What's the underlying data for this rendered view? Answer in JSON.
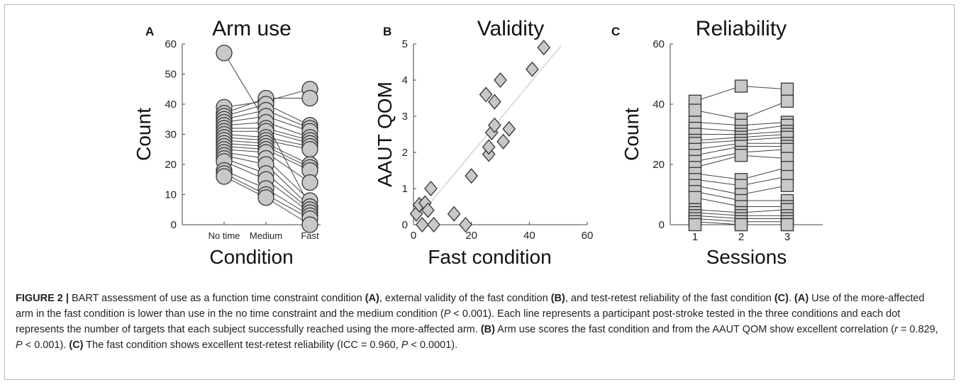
{
  "figure_label": "FIGURE 2 |",
  "caption": {
    "s1": " BART assessment of use as a function time constraint condition ",
    "s2": ", external validity of the fast condition ",
    "s3": ", and test-retest reliability of the fast condition ",
    "s4": ". ",
    "s5": " Use of the more-affected arm in the fast condition is lower than use in the no time constraint and the medium condition (",
    "s6": " < 0.001). Each line represents a participant post-stroke tested in the three conditions and each dot represents the number of targets that each subject successfully reached using the more-affected arm. ",
    "s7": " Arm use scores the fast condition and from the AAUT QOM show excellent correlation (",
    "s8": " = 0.829, ",
    "s9": " < 0.001). ",
    "s10": " The fast condition shows excellent test-retest reliability (ICC = 0.960, ",
    "s11": " < 0.0001).",
    "ref_a": "(A)",
    "ref_b": "(B)",
    "ref_c": "(C)",
    "p_symbol": "P",
    "r_symbol": "r"
  },
  "chart_data": [
    {
      "type": "scatter",
      "panel": "A",
      "title": "Arm use",
      "xlabel": "Condition",
      "ylabel": "Count",
      "categories": [
        "No time",
        "Medium",
        "Fast"
      ],
      "ylim": [
        0,
        60
      ],
      "yticks": [
        0,
        10,
        20,
        30,
        40,
        50,
        60
      ],
      "marker": "circle",
      "participants": [
        [
          57,
          34,
          6
        ],
        [
          39,
          41,
          45
        ],
        [
          37,
          42,
          42
        ],
        [
          36,
          40,
          33
        ],
        [
          35,
          38,
          32
        ],
        [
          34,
          36,
          31
        ],
        [
          33,
          34,
          29
        ],
        [
          32,
          32,
          28
        ],
        [
          31,
          31,
          27
        ],
        [
          30,
          29,
          26
        ],
        [
          29,
          28,
          25
        ],
        [
          28,
          27,
          20
        ],
        [
          27,
          26,
          19
        ],
        [
          26,
          25,
          18
        ],
        [
          25,
          24,
          14
        ],
        [
          24,
          22,
          8
        ],
        [
          23,
          20,
          6
        ],
        [
          22,
          17,
          5
        ],
        [
          21,
          15,
          4
        ],
        [
          18,
          12,
          3
        ],
        [
          17,
          10,
          2
        ],
        [
          16,
          9,
          0
        ]
      ],
      "grid": false
    },
    {
      "type": "scatter",
      "panel": "B",
      "title": "Validity",
      "xlabel": "Fast condition",
      "ylabel": "AAUT QOM",
      "xlim": [
        0,
        60
      ],
      "ylim": [
        0,
        5
      ],
      "xticks": [
        0,
        20,
        40,
        60
      ],
      "yticks": [
        0,
        1,
        2,
        3,
        4,
        5
      ],
      "marker": "diamond",
      "points": [
        {
          "x": 1,
          "y": 0.3
        },
        {
          "x": 2,
          "y": 0.55
        },
        {
          "x": 3,
          "y": 0.0
        },
        {
          "x": 4,
          "y": 0.6
        },
        {
          "x": 5,
          "y": 0.4
        },
        {
          "x": 6,
          "y": 1.0
        },
        {
          "x": 7,
          "y": 0.0
        },
        {
          "x": 14,
          "y": 0.3
        },
        {
          "x": 18,
          "y": 0.0
        },
        {
          "x": 20,
          "y": 1.35
        },
        {
          "x": 25,
          "y": 3.6
        },
        {
          "x": 26,
          "y": 1.95
        },
        {
          "x": 26,
          "y": 2.15
        },
        {
          "x": 27,
          "y": 2.55
        },
        {
          "x": 28,
          "y": 3.4
        },
        {
          "x": 28,
          "y": 2.75
        },
        {
          "x": 30,
          "y": 4.0
        },
        {
          "x": 31,
          "y": 2.3
        },
        {
          "x": 33,
          "y": 2.65
        },
        {
          "x": 41,
          "y": 4.3
        },
        {
          "x": 45,
          "y": 4.9
        }
      ],
      "fit_line": {
        "x": [
          0,
          51
        ],
        "y": [
          0.05,
          4.95
        ]
      },
      "grid": false
    },
    {
      "type": "scatter",
      "panel": "C",
      "title": "Reliability",
      "xlabel": "Sessions",
      "ylabel": "Count",
      "categories": [
        "1",
        "2",
        "3"
      ],
      "ylim": [
        0,
        60
      ],
      "yticks": [
        0,
        20,
        40,
        60
      ],
      "marker": "square",
      "participants": [
        [
          41,
          46,
          45
        ],
        [
          38,
          35,
          41
        ],
        [
          34,
          33,
          34
        ],
        [
          32,
          31,
          33
        ],
        [
          30,
          30,
          31
        ],
        [
          28,
          29,
          30
        ],
        [
          27,
          28,
          29
        ],
        [
          25,
          27,
          27
        ],
        [
          23,
          26,
          26
        ],
        [
          21,
          24,
          25
        ],
        [
          19,
          23,
          22
        ],
        [
          17,
          15,
          19
        ],
        [
          15,
          13,
          16
        ],
        [
          13,
          10,
          13
        ],
        [
          11,
          8,
          8
        ],
        [
          9,
          6,
          6
        ],
        [
          5,
          4,
          5
        ],
        [
          4,
          3,
          3
        ],
        [
          3,
          2,
          2
        ],
        [
          2,
          1,
          1
        ],
        [
          1,
          0,
          0
        ],
        [
          0,
          0,
          0
        ]
      ],
      "grid": false
    }
  ]
}
